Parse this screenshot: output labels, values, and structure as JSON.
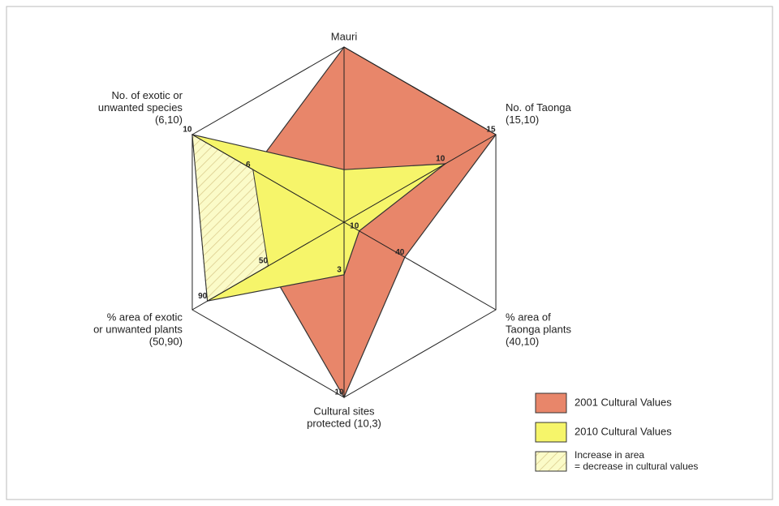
{
  "chart_data": {
    "type": "radar",
    "axes": [
      {
        "label": [
          "Mauri"
        ],
        "max": 10
      },
      {
        "label": [
          "No. of Taonga",
          "(15,10)"
        ],
        "max": 15
      },
      {
        "label": [
          "% area of",
          "Taonga plants",
          "(40,10)"
        ],
        "max": 100
      },
      {
        "label": [
          "Cultural sites",
          "protected (10,3)"
        ],
        "max": 10
      },
      {
        "label": [
          "% area of exotic",
          "or unwanted plants",
          "(50,90)"
        ],
        "max": 100
      },
      {
        "label": [
          "No. of exotic or",
          "unwanted species",
          "(6,10)"
        ],
        "max": 10
      }
    ],
    "series": [
      {
        "name": "2001 Cultural Values",
        "color": "#e8866a",
        "values": [
          10,
          15,
          40,
          10,
          50,
          6
        ],
        "value_labels": [
          null,
          "15",
          "40",
          "10",
          "50",
          "6"
        ]
      },
      {
        "name": "2010 Cultural Values",
        "color": "#f6f56a",
        "values": [
          3,
          10,
          10,
          3,
          90,
          10
        ],
        "value_labels": [
          null,
          "10",
          "10",
          "3",
          "90",
          "10"
        ]
      }
    ],
    "hatch_legend": [
      "Increase in area",
      "= decrease in cultural values"
    ]
  }
}
